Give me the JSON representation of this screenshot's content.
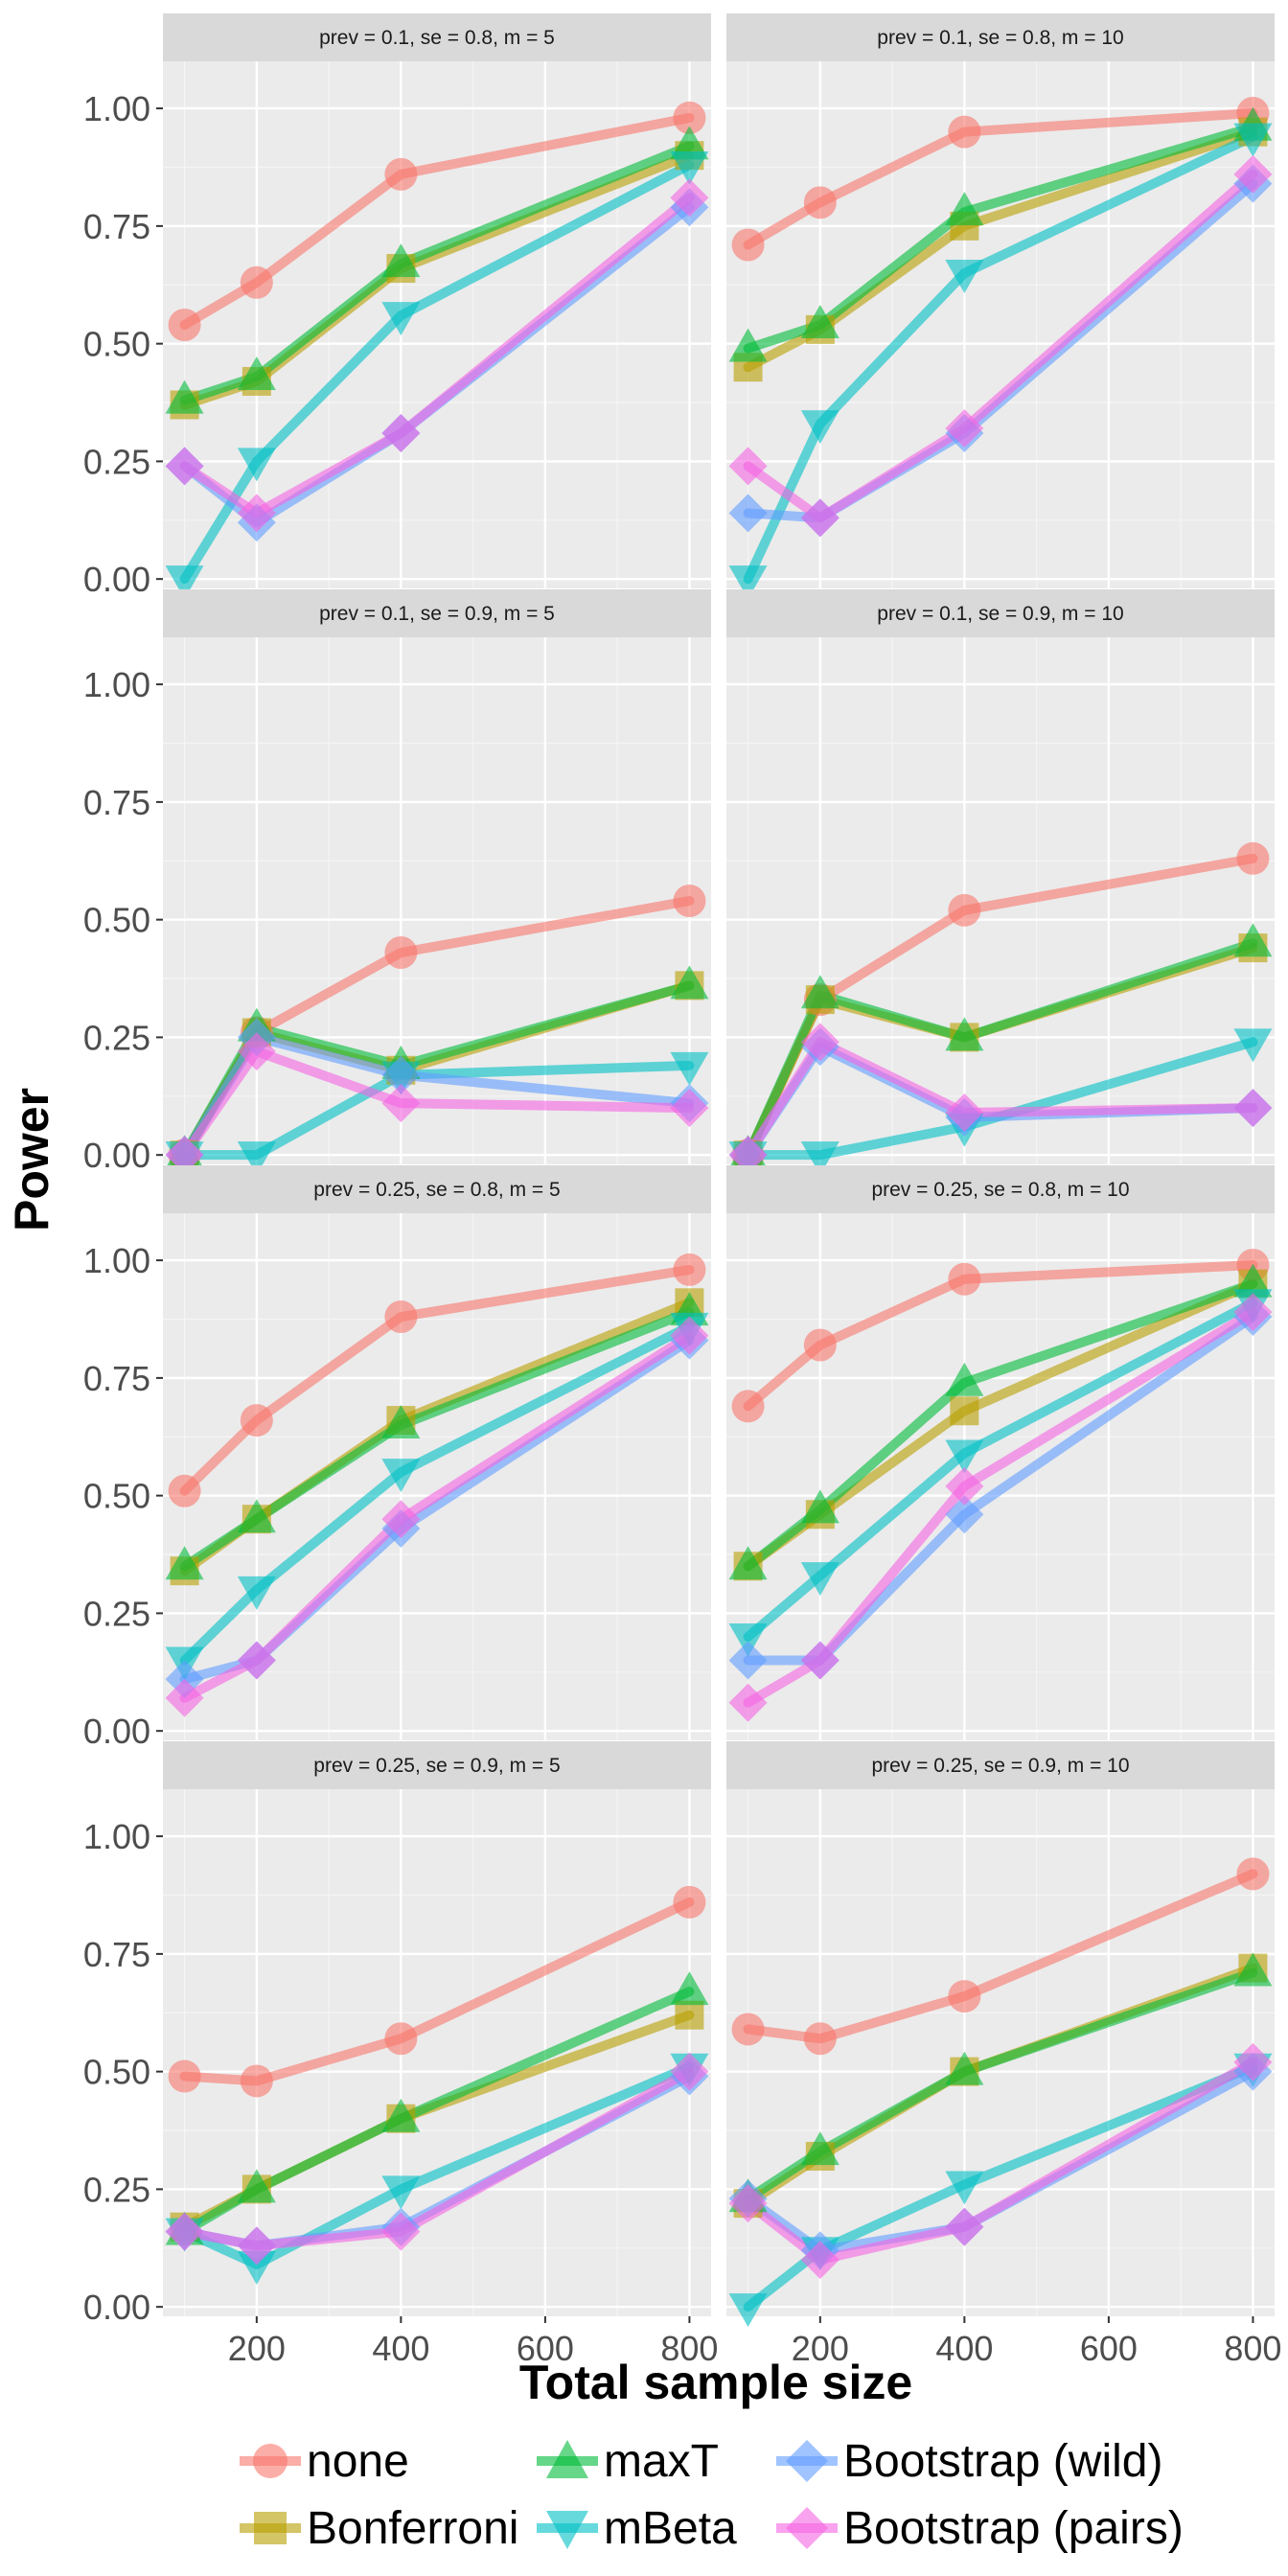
{
  "chart_data": {
    "type": "line",
    "ylabel": "Power",
    "xlabel": "Total sample size",
    "x": [
      100,
      200,
      400,
      800
    ],
    "xticks": [
      200,
      400,
      600,
      800
    ],
    "yticks": [
      "0.00",
      "0.25",
      "0.50",
      "0.75",
      "1.00"
    ],
    "xlim": [
      70,
      830
    ],
    "ylim": [
      -0.02,
      1.1
    ],
    "grid": true,
    "legend_position": "bottom",
    "legend": [
      {
        "name": "none",
        "color": "#F8766D",
        "shape": "circle"
      },
      {
        "name": "Bonferroni",
        "color": "#B79F00",
        "shape": "square"
      },
      {
        "name": "maxT",
        "color": "#00BA38",
        "shape": "triangle-up"
      },
      {
        "name": "mBeta",
        "color": "#00BFC4",
        "shape": "triangle-down"
      },
      {
        "name": "Bootstrap (wild)",
        "color": "#619CFF",
        "shape": "diamond"
      },
      {
        "name": "Bootstrap (pairs)",
        "color": "#F564E3",
        "shape": "diamond"
      }
    ],
    "panels": [
      {
        "title": "prev =  0.1, se =  0.8, m =  5",
        "series": [
          {
            "name": "none",
            "values": [
              0.54,
              0.63,
              0.86,
              0.98
            ]
          },
          {
            "name": "Bonferroni",
            "values": [
              0.37,
              0.42,
              0.66,
              0.9
            ]
          },
          {
            "name": "maxT",
            "values": [
              0.38,
              0.43,
              0.67,
              0.92
            ]
          },
          {
            "name": "mBeta",
            "values": [
              0.0,
              0.25,
              0.56,
              0.88
            ]
          },
          {
            "name": "Bootstrap (wild)",
            "values": [
              0.24,
              0.12,
              0.31,
              0.79
            ]
          },
          {
            "name": "Bootstrap (pairs)",
            "values": [
              0.24,
              0.14,
              0.31,
              0.81
            ]
          }
        ]
      },
      {
        "title": "prev =  0.1, se =  0.8, m =  10",
        "series": [
          {
            "name": "none",
            "values": [
              0.71,
              0.8,
              0.95,
              0.99
            ]
          },
          {
            "name": "Bonferroni",
            "values": [
              0.45,
              0.53,
              0.75,
              0.95
            ]
          },
          {
            "name": "maxT",
            "values": [
              0.49,
              0.54,
              0.78,
              0.96
            ]
          },
          {
            "name": "mBeta",
            "values": [
              0.0,
              0.33,
              0.65,
              0.94
            ]
          },
          {
            "name": "Bootstrap (wild)",
            "values": [
              0.14,
              0.13,
              0.31,
              0.84
            ]
          },
          {
            "name": "Bootstrap (pairs)",
            "values": [
              0.24,
              0.13,
              0.32,
              0.86
            ]
          }
        ]
      },
      {
        "title": "prev =  0.1, se =  0.9, m =  5",
        "series": [
          {
            "name": "none",
            "values": [
              0.0,
              0.26,
              0.43,
              0.54
            ]
          },
          {
            "name": "Bonferroni",
            "values": [
              0.0,
              0.26,
              0.18,
              0.36
            ]
          },
          {
            "name": "maxT",
            "values": [
              0.0,
              0.27,
              0.19,
              0.36
            ]
          },
          {
            "name": "mBeta",
            "values": [
              0.0,
              0.0,
              0.17,
              0.19
            ]
          },
          {
            "name": "Bootstrap (wild)",
            "values": [
              0.0,
              0.25,
              0.17,
              0.11
            ]
          },
          {
            "name": "Bootstrap (pairs)",
            "values": [
              0.0,
              0.22,
              0.11,
              0.1
            ]
          }
        ]
      },
      {
        "title": "prev =  0.1, se =  0.9, m =  10",
        "series": [
          {
            "name": "none",
            "values": [
              0.0,
              0.33,
              0.52,
              0.63
            ]
          },
          {
            "name": "Bonferroni",
            "values": [
              0.0,
              0.33,
              0.25,
              0.44
            ]
          },
          {
            "name": "maxT",
            "values": [
              0.0,
              0.34,
              0.25,
              0.45
            ]
          },
          {
            "name": "mBeta",
            "values": [
              0.0,
              0.0,
              0.06,
              0.24
            ]
          },
          {
            "name": "Bootstrap (wild)",
            "values": [
              0.0,
              0.23,
              0.08,
              0.1
            ]
          },
          {
            "name": "Bootstrap (pairs)",
            "values": [
              0.0,
              0.24,
              0.09,
              0.1
            ]
          }
        ]
      },
      {
        "title": "prev =  0.25, se =  0.8, m =  5",
        "series": [
          {
            "name": "none",
            "values": [
              0.51,
              0.66,
              0.88,
              0.98
            ]
          },
          {
            "name": "Bonferroni",
            "values": [
              0.34,
              0.45,
              0.66,
              0.91
            ]
          },
          {
            "name": "maxT",
            "values": [
              0.35,
              0.45,
              0.65,
              0.89
            ]
          },
          {
            "name": "mBeta",
            "values": [
              0.15,
              0.3,
              0.55,
              0.86
            ]
          },
          {
            "name": "Bootstrap (wild)",
            "values": [
              0.11,
              0.15,
              0.43,
              0.83
            ]
          },
          {
            "name": "Bootstrap (pairs)",
            "values": [
              0.07,
              0.15,
              0.45,
              0.84
            ]
          }
        ]
      },
      {
        "title": "prev =  0.25, se =  0.8, m =  10",
        "series": [
          {
            "name": "none",
            "values": [
              0.69,
              0.82,
              0.96,
              0.99
            ]
          },
          {
            "name": "Bonferroni",
            "values": [
              0.35,
              0.46,
              0.68,
              0.95
            ]
          },
          {
            "name": "maxT",
            "values": [
              0.35,
              0.47,
              0.74,
              0.95
            ]
          },
          {
            "name": "mBeta",
            "values": [
              0.2,
              0.33,
              0.59,
              0.91
            ]
          },
          {
            "name": "Bootstrap (wild)",
            "values": [
              0.15,
              0.15,
              0.46,
              0.88
            ]
          },
          {
            "name": "Bootstrap (pairs)",
            "values": [
              0.06,
              0.15,
              0.52,
              0.89
            ]
          }
        ]
      },
      {
        "title": "prev =  0.25, se =  0.9, m =  5",
        "series": [
          {
            "name": "none",
            "values": [
              0.49,
              0.48,
              0.57,
              0.86
            ]
          },
          {
            "name": "Bonferroni",
            "values": [
              0.17,
              0.25,
              0.4,
              0.62
            ]
          },
          {
            "name": "maxT",
            "values": [
              0.16,
              0.25,
              0.4,
              0.67
            ]
          },
          {
            "name": "mBeta",
            "values": [
              0.16,
              0.09,
              0.25,
              0.51
            ]
          },
          {
            "name": "Bootstrap (wild)",
            "values": [
              0.16,
              0.13,
              0.17,
              0.49
            ]
          },
          {
            "name": "Bootstrap (pairs)",
            "values": [
              0.16,
              0.13,
              0.16,
              0.5
            ]
          }
        ]
      },
      {
        "title": "prev =  0.25, se =  0.9, m =  10",
        "series": [
          {
            "name": "none",
            "values": [
              0.59,
              0.57,
              0.66,
              0.92
            ]
          },
          {
            "name": "Bonferroni",
            "values": [
              0.22,
              0.32,
              0.5,
              0.72
            ]
          },
          {
            "name": "maxT",
            "values": [
              0.23,
              0.33,
              0.5,
              0.71
            ]
          },
          {
            "name": "mBeta",
            "values": [
              0.0,
              0.12,
              0.26,
              0.51
            ]
          },
          {
            "name": "Bootstrap (wild)",
            "values": [
              0.23,
              0.12,
              0.17,
              0.5
            ]
          },
          {
            "name": "Bootstrap (pairs)",
            "values": [
              0.22,
              0.1,
              0.17,
              0.52
            ]
          }
        ]
      }
    ]
  }
}
